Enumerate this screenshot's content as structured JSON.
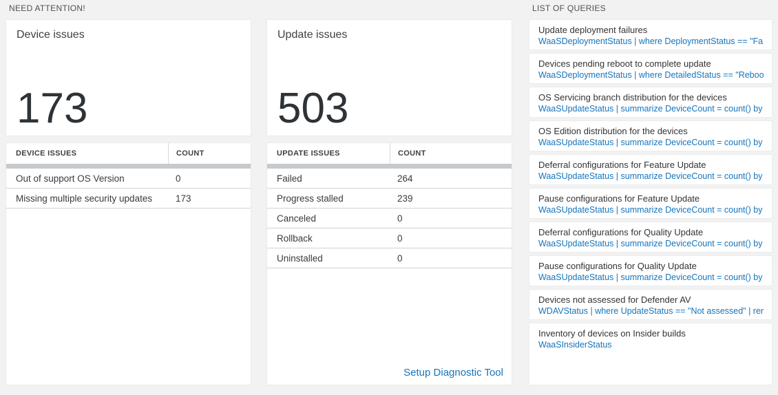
{
  "colors": {
    "background": "#f2f2f2",
    "accent_blue": "#1475bc",
    "big_number": "#2e3338",
    "separator_bar": "#c7cacc"
  },
  "sections": {
    "need_attention_title": "NEED ATTENTION!",
    "queries_title": "LIST OF QUERIES"
  },
  "device_card": {
    "title": "Device issues",
    "value": "173"
  },
  "device_table": {
    "headers": {
      "name": "DEVICE ISSUES",
      "count": "COUNT"
    },
    "rows": [
      {
        "name": "Out of support OS Version",
        "count": "0"
      },
      {
        "name": "Missing multiple security updates",
        "count": "173"
      }
    ]
  },
  "update_card": {
    "title": "Update issues",
    "value": "503"
  },
  "update_table": {
    "headers": {
      "name": "UPDATE ISSUES",
      "count": "COUNT"
    },
    "rows": [
      {
        "name": "Failed",
        "count": "264"
      },
      {
        "name": "Progress stalled",
        "count": "239"
      },
      {
        "name": "Canceled",
        "count": "0"
      },
      {
        "name": "Rollback",
        "count": "0"
      },
      {
        "name": "Uninstalled",
        "count": "0"
      }
    ],
    "link": "Setup Diagnostic Tool"
  },
  "queries": {
    "items": [
      {
        "title": "Update deployment failures",
        "query": "WaaSDeploymentStatus | where DeploymentStatus == \"Failed\" |..."
      },
      {
        "title": "Devices pending reboot to complete update",
        "query": "WaaSDeploymentStatus | where DetailedStatus == \"Reboot pend..."
      },
      {
        "title": "OS Servicing branch distribution for the devices",
        "query": "WaaSUpdateStatus | summarize DeviceCount = count() by OSSer..."
      },
      {
        "title": "OS Edition distribution for the devices",
        "query": "WaaSUpdateStatus | summarize DeviceCount = count() by OSEdit..."
      },
      {
        "title": "Deferral configurations for Feature Update",
        "query": "WaaSUpdateStatus | summarize DeviceCount = count() by Featur..."
      },
      {
        "title": "Pause configurations for Feature Update",
        "query": "WaaSUpdateStatus | summarize DeviceCount = count() by Featur..."
      },
      {
        "title": "Deferral configurations for Quality Update",
        "query": "WaaSUpdateStatus | summarize DeviceCount = count() by Qualit..."
      },
      {
        "title": "Pause configurations for Quality Update",
        "query": "WaaSUpdateStatus | summarize DeviceCount = count() by Qualit..."
      },
      {
        "title": "Devices not assessed for Defender AV",
        "query": "WDAVStatus | where UpdateStatus == \"Not assessed\" | render ta..."
      },
      {
        "title": "Inventory of devices on Insider builds",
        "query": "WaaSInsiderStatus"
      }
    ]
  }
}
